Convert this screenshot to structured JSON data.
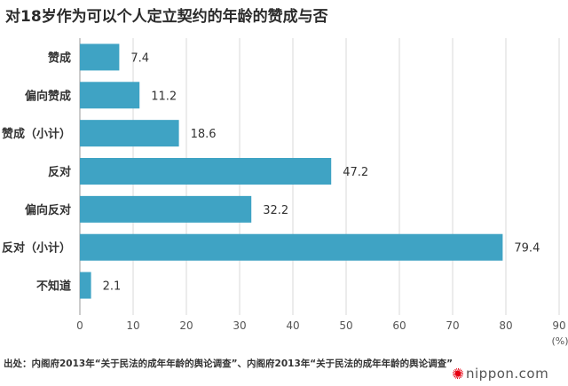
{
  "title": "对18岁作为可以个人定立契约的年龄的赞成与否",
  "source": "出处：内阁府2013年“关于民法的成年年龄的舆论调查”、内阁府2013年“关于民法的成年年龄的舆论调查”",
  "logo": "nippon.com",
  "colors": {
    "bar": "#3fa3c4",
    "grid": "#d9d9d9",
    "axis": "#999999"
  },
  "chart_data": {
    "type": "bar",
    "orientation": "horizontal",
    "title": "对18岁作为可以个人定立契约的年龄的赞成与否",
    "categories": [
      "赞成",
      "偏向赞成",
      "赞成（小计）",
      "反对",
      "偏向反对",
      "反对（小计）",
      "不知道"
    ],
    "values": [
      7.4,
      11.2,
      18.6,
      47.2,
      32.2,
      79.4,
      2.1
    ],
    "value_labels": [
      "7.4",
      "11.2",
      "18.6",
      "47.2",
      "32.2",
      "79.4",
      "2.1"
    ],
    "xlim": [
      0,
      90
    ],
    "xticks": [
      0,
      10,
      20,
      30,
      40,
      50,
      60,
      70,
      80,
      90
    ],
    "xunit": "(%)",
    "grid": true
  }
}
